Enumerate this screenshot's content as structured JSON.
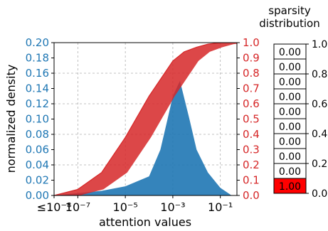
{
  "chart_data": [
    {
      "type": "area",
      "xlabel": "attention values",
      "xscale": "log",
      "x_tick_labels": [
        "≤10⁻⁸",
        "10⁻⁷",
        "10⁻⁵",
        "10⁻³",
        "10⁻¹"
      ],
      "x_tick_values": [
        1e-08,
        1e-07,
        1e-05,
        0.001,
        0.1
      ],
      "xlim": [
        1e-08,
        0.5
      ],
      "grid": true,
      "left_axis": {
        "label": "normalized density",
        "color": "#1f77b4",
        "ylim": [
          0,
          0.2
        ],
        "ticks": [
          "0.00",
          "0.02",
          "0.04",
          "0.06",
          "0.08",
          "0.10",
          "0.12",
          "0.14",
          "0.16",
          "0.18",
          "0.20"
        ]
      },
      "right_axis": {
        "label": "",
        "color": "#d62728",
        "ylim": [
          0,
          1.0
        ],
        "ticks": [
          "0.0",
          "0.1",
          "0.2",
          "0.3",
          "0.4",
          "0.5",
          "0.6",
          "0.7",
          "0.8",
          "0.9",
          "1.0"
        ]
      },
      "series": [
        {
          "kind": "density",
          "color": "#1f77b4",
          "x": [
            1e-08,
            1e-07,
            1e-06,
            1e-05,
            0.0001,
            0.0003,
            0.0006,
            0.001,
            0.002,
            0.005,
            0.01,
            0.03,
            0.1,
            0.3
          ],
          "y": [
            0.0,
            0.003,
            0.006,
            0.012,
            0.025,
            0.06,
            0.1,
            0.13,
            0.15,
            0.1,
            0.06,
            0.03,
            0.01,
            0.0
          ]
        },
        {
          "kind": "cumulative",
          "color": "#d62728",
          "x": [
            1e-08,
            1e-07,
            1e-06,
            1e-05,
            0.0001,
            0.001,
            0.003,
            0.01,
            0.03,
            0.1,
            0.3
          ],
          "y": [
            0.0,
            0.04,
            0.15,
            0.38,
            0.65,
            0.88,
            0.94,
            0.97,
            0.99,
            1.0,
            1.0
          ]
        }
      ]
    },
    {
      "type": "heatmap",
      "title": "sparsity\ndistribution",
      "title_lines": [
        "sparsity",
        "distribution"
      ],
      "colorscale": [
        "#ffffff",
        "#ff0000"
      ],
      "ylim": [
        0,
        1.0
      ],
      "y_ticks": [
        "1.0",
        "0.8",
        "0.6",
        "0.4",
        "0.2",
        "0.0"
      ],
      "cells": [
        "0.00",
        "0.00",
        "0.00",
        "0.00",
        "0.00",
        "0.00",
        "0.00",
        "0.00",
        "0.00",
        "1.00"
      ],
      "values": [
        0,
        0,
        0,
        0,
        0,
        0,
        0,
        0,
        0,
        1
      ]
    }
  ]
}
